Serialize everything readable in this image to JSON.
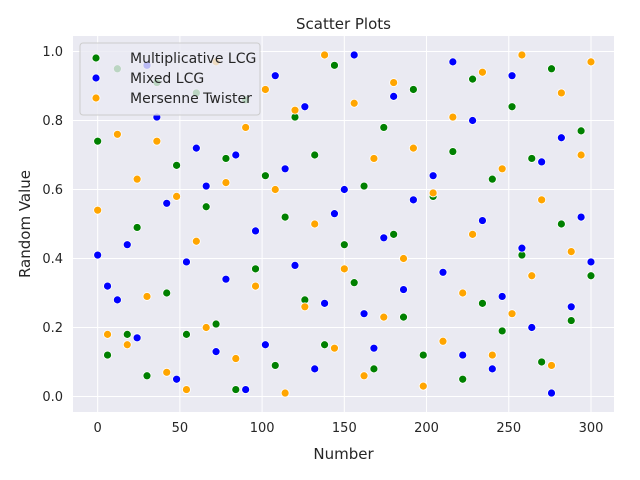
{
  "chart_data": {
    "type": "scatter",
    "title": "Scatter Plots",
    "xlabel": "Number",
    "ylabel": "Random Value",
    "xlim": [
      -15,
      314
    ],
    "ylim": [
      -0.045,
      1.045
    ],
    "xticks": [
      0,
      50,
      100,
      150,
      200,
      250,
      300
    ],
    "yticks": [
      0.0,
      0.2,
      0.4,
      0.6,
      0.8,
      1.0
    ],
    "xtick_labels": [
      "0",
      "50",
      "100",
      "150",
      "200",
      "250",
      "300"
    ],
    "ytick_labels": [
      "0.0",
      "0.2",
      "0.4",
      "0.6",
      "0.8",
      "1.0"
    ],
    "grid": true,
    "legend_position": "top-left",
    "background": "#eaeaf2",
    "series": [
      {
        "name": "Multiplicative LCG",
        "color": "#008000",
        "x": [
          0,
          6,
          12,
          18,
          24,
          30,
          36,
          42,
          48,
          54,
          60,
          66,
          72,
          78,
          84,
          90,
          96,
          102,
          108,
          114,
          120,
          126,
          132,
          138,
          144,
          150,
          156,
          162,
          168,
          174,
          180,
          186,
          192,
          198,
          204,
          210,
          216,
          222,
          228,
          234,
          240,
          246,
          252,
          258,
          264,
          270,
          276,
          282,
          288,
          294,
          300
        ],
        "y": [
          0.74,
          0.12,
          0.95,
          0.18,
          0.49,
          0.06,
          0.91,
          0.3,
          0.67,
          0.18,
          0.88,
          0.55,
          0.21,
          0.69,
          0.02,
          0.86,
          0.37,
          0.64,
          0.09,
          0.52,
          0.81,
          0.28,
          0.7,
          0.15,
          0.96,
          0.44,
          0.33,
          0.61,
          0.08,
          0.78,
          0.47,
          0.23,
          0.89,
          0.12,
          0.58,
          0.36,
          0.71,
          0.05,
          0.92,
          0.27,
          0.63,
          0.19,
          0.84,
          0.41,
          0.69,
          0.1,
          0.95,
          0.5,
          0.22,
          0.77,
          0.35
        ]
      },
      {
        "name": "Mixed LCG",
        "color": "#0000ff",
        "x": [
          0,
          6,
          12,
          18,
          24,
          30,
          36,
          42,
          48,
          54,
          60,
          66,
          72,
          78,
          84,
          90,
          96,
          102,
          108,
          114,
          120,
          126,
          132,
          138,
          144,
          150,
          156,
          162,
          168,
          174,
          180,
          186,
          192,
          198,
          204,
          210,
          216,
          222,
          228,
          234,
          240,
          246,
          252,
          258,
          264,
          270,
          276,
          282,
          288,
          294,
          300
        ],
        "y": [
          0.41,
          0.32,
          0.28,
          0.44,
          0.17,
          0.96,
          0.81,
          0.56,
          0.05,
          0.39,
          0.72,
          0.61,
          0.13,
          0.34,
          0.7,
          0.02,
          0.48,
          0.15,
          0.93,
          0.66,
          0.38,
          0.84,
          0.08,
          0.27,
          0.53,
          0.6,
          0.99,
          0.24,
          0.14,
          0.46,
          0.87,
          0.31,
          0.57,
          0.03,
          0.64,
          0.36,
          0.97,
          0.12,
          0.8,
          0.51,
          0.08,
          0.29,
          0.93,
          0.43,
          0.2,
          0.68,
          0.01,
          0.75,
          0.26,
          0.52,
          0.39
        ]
      },
      {
        "name": "Mersenne Twister",
        "color": "#ffa500",
        "x": [
          0,
          6,
          12,
          18,
          24,
          30,
          36,
          42,
          48,
          54,
          60,
          66,
          72,
          78,
          84,
          90,
          96,
          102,
          108,
          114,
          120,
          126,
          132,
          138,
          144,
          150,
          156,
          162,
          168,
          174,
          180,
          186,
          192,
          198,
          204,
          210,
          216,
          222,
          228,
          234,
          240,
          246,
          252,
          258,
          264,
          270,
          276,
          282,
          288,
          294,
          300
        ],
        "y": [
          0.54,
          0.18,
          0.76,
          0.15,
          0.63,
          0.29,
          0.74,
          0.07,
          0.58,
          0.02,
          0.45,
          0.2,
          0.97,
          0.62,
          0.11,
          0.78,
          0.32,
          0.89,
          0.6,
          0.01,
          0.83,
          0.26,
          0.5,
          0.99,
          0.14,
          0.37,
          0.85,
          0.06,
          0.69,
          0.23,
          0.91,
          0.4,
          0.72,
          0.03,
          0.59,
          0.16,
          0.81,
          0.3,
          0.47,
          0.94,
          0.12,
          0.66,
          0.24,
          0.99,
          0.35,
          0.57,
          0.09,
          0.88,
          0.42,
          0.7,
          0.97
        ]
      }
    ]
  }
}
